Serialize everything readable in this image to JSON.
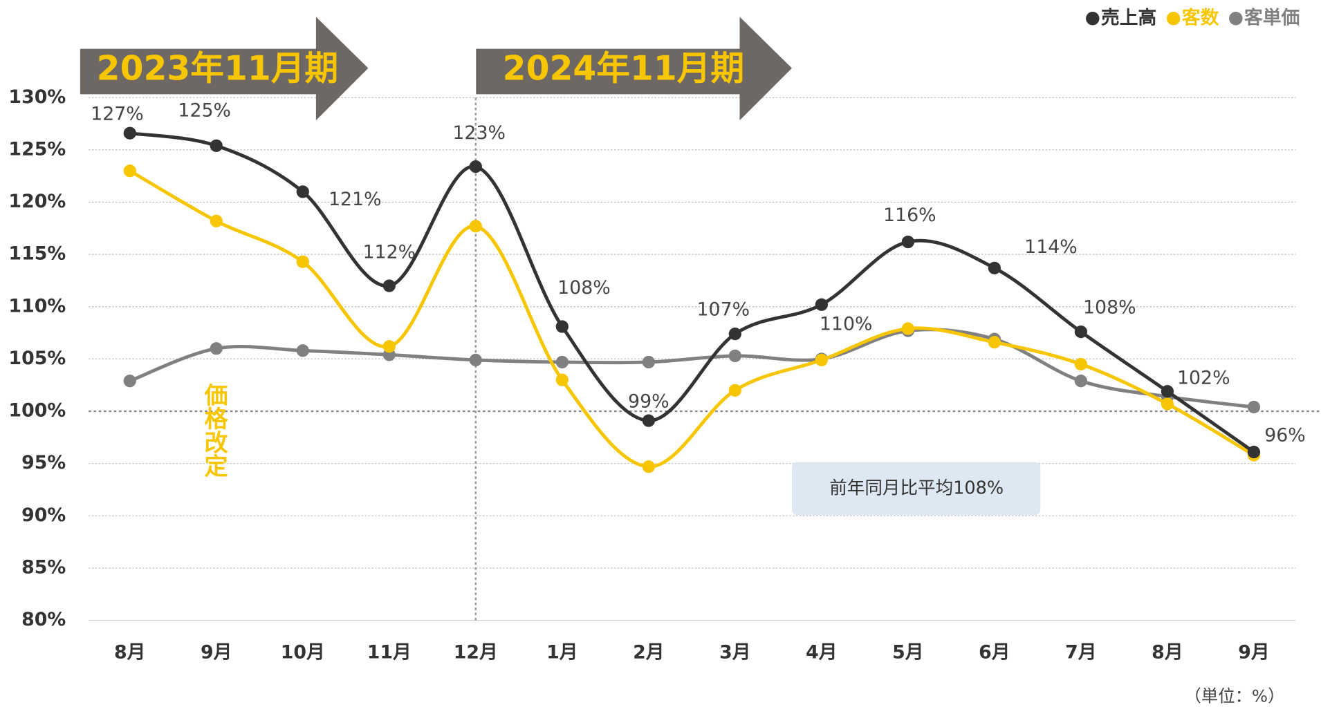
{
  "chart_data": {
    "type": "line",
    "categories": [
      "8月",
      "9月",
      "10月",
      "11月",
      "12月",
      "1月",
      "2月",
      "3月",
      "4月",
      "5月",
      "6月",
      "7月",
      "8月",
      "9月"
    ],
    "series": [
      {
        "name": "売上高",
        "color": "#333333",
        "values": [
          126.6,
          125.4,
          121.0,
          112.0,
          123.4,
          108.1,
          99.1,
          107.4,
          110.2,
          116.2,
          113.7,
          107.6,
          101.9,
          96.1
        ],
        "value_labels": [
          "127%",
          "125%",
          "121%",
          "112%",
          "123%",
          "108%",
          "99%",
          "107%",
          "110%",
          "116%",
          "114%",
          "108%",
          "102%",
          "96%"
        ]
      },
      {
        "name": "客数",
        "color": "#f7c600",
        "values": [
          123.0,
          118.2,
          114.3,
          106.2,
          117.7,
          103.0,
          94.7,
          102.0,
          104.9,
          107.9,
          106.6,
          104.5,
          100.7,
          95.8
        ]
      },
      {
        "name": "客単価",
        "color": "#808080",
        "values": [
          102.9,
          106.0,
          105.8,
          105.4,
          104.9,
          104.7,
          104.7,
          105.3,
          105.0,
          107.7,
          106.9,
          102.9,
          101.4,
          100.4
        ]
      }
    ],
    "ylim": [
      80,
      130
    ],
    "yticks": [
      {
        "value": 80,
        "label": "80%"
      },
      {
        "value": 85,
        "label": "85%"
      },
      {
        "value": 90,
        "label": "90%"
      },
      {
        "value": 95,
        "label": "95%"
      },
      {
        "value": 100,
        "label": "100%"
      },
      {
        "value": 105,
        "label": "105%"
      },
      {
        "value": 110,
        "label": "110%"
      },
      {
        "value": 115,
        "label": "115%"
      },
      {
        "value": 120,
        "label": "120%"
      },
      {
        "value": 125,
        "label": "125%"
      },
      {
        "value": 130,
        "label": "130%"
      }
    ],
    "grid": true,
    "legend": "top-right",
    "periods": [
      "2023年11月期",
      "2024年11月期"
    ],
    "annotation": "価格改定",
    "note": "前年同月比平均108%",
    "unit_label": "（単位：%）"
  }
}
